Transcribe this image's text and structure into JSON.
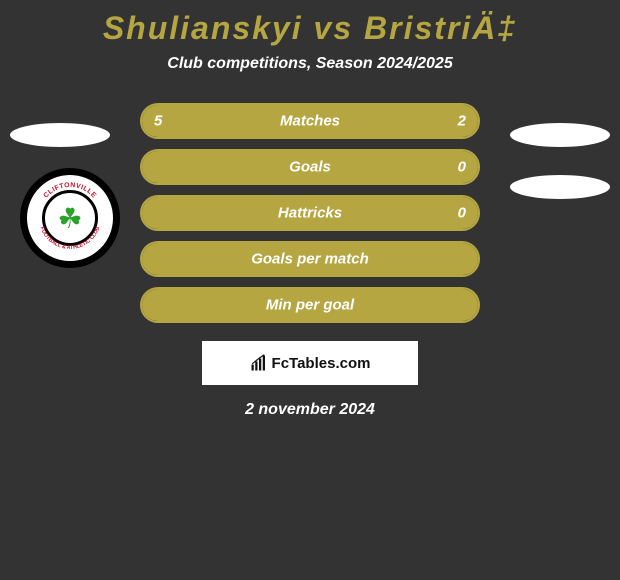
{
  "header": {
    "title": "Shulianskyi vs BristriÄ‡",
    "subtitle": "Club competitions, Season 2024/2025"
  },
  "stats": [
    {
      "label": "Matches",
      "left_value": "5",
      "right_value": "2",
      "left_pct": 71,
      "right_pct": 29,
      "show_values": true
    },
    {
      "label": "Goals",
      "left_value": "",
      "right_value": "0",
      "left_pct": 100,
      "right_pct": 0,
      "show_values": true,
      "show_left_value": false
    },
    {
      "label": "Hattricks",
      "left_value": "",
      "right_value": "0",
      "left_pct": 100,
      "right_pct": 0,
      "show_values": true,
      "show_left_value": false
    },
    {
      "label": "Goals per match",
      "left_value": "",
      "right_value": "",
      "left_pct": 100,
      "right_pct": 0,
      "show_values": false
    },
    {
      "label": "Min per goal",
      "left_value": "",
      "right_value": "",
      "left_pct": 100,
      "right_pct": 0,
      "show_values": false
    }
  ],
  "badge": {
    "club_name": "Cliftonville",
    "ring_text": "CLIFTONVILLE FOOTBALL & ATHLETIC CLUB"
  },
  "watermark": {
    "text": "FcTables.com"
  },
  "footer": {
    "date": "2 november 2024"
  },
  "colors": {
    "background": "#333333",
    "accent": "#b5a642",
    "text": "#ffffff",
    "badge_green": "#2aa12a",
    "badge_red": "#c8102e"
  }
}
